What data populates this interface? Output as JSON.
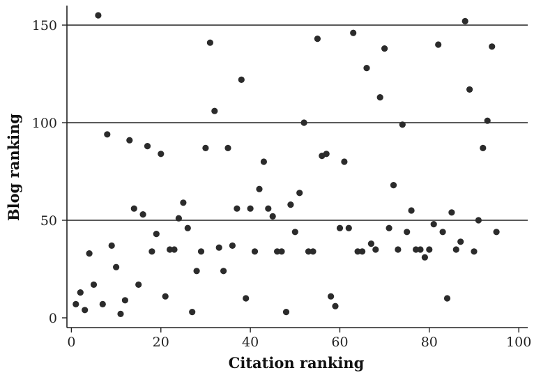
{
  "chart_data": {
    "type": "scatter",
    "title": "",
    "xlabel": "Citation ranking",
    "ylabel": "Blog ranking",
    "xlim": [
      -1,
      102
    ],
    "ylim": [
      -5,
      160
    ],
    "xticks": [
      0,
      20,
      40,
      60,
      80,
      100
    ],
    "yticks": [
      0,
      50,
      100,
      150
    ],
    "gridlines_y": [
      50,
      100,
      150
    ],
    "grid": "horizontal at 50, 100, 150",
    "legend": "none",
    "marker_color": "#2b2b2b",
    "points": [
      [
        1,
        7
      ],
      [
        2,
        13
      ],
      [
        3,
        4
      ],
      [
        4,
        33
      ],
      [
        5,
        17
      ],
      [
        6,
        155
      ],
      [
        7,
        7
      ],
      [
        8,
        94
      ],
      [
        9,
        37
      ],
      [
        10,
        26
      ],
      [
        11,
        2
      ],
      [
        12,
        9
      ],
      [
        13,
        91
      ],
      [
        14,
        56
      ],
      [
        15,
        17
      ],
      [
        16,
        53
      ],
      [
        17,
        88
      ],
      [
        18,
        34
      ],
      [
        19,
        43
      ],
      [
        20,
        84
      ],
      [
        21,
        11
      ],
      [
        22,
        35
      ],
      [
        23,
        35
      ],
      [
        24,
        51
      ],
      [
        25,
        59
      ],
      [
        26,
        46
      ],
      [
        27,
        3
      ],
      [
        28,
        24
      ],
      [
        29,
        34
      ],
      [
        30,
        87
      ],
      [
        31,
        141
      ],
      [
        32,
        106
      ],
      [
        33,
        36
      ],
      [
        34,
        24
      ],
      [
        35,
        87
      ],
      [
        36,
        37
      ],
      [
        37,
        56
      ],
      [
        38,
        122
      ],
      [
        39,
        10
      ],
      [
        40,
        56
      ],
      [
        41,
        34
      ],
      [
        42,
        66
      ],
      [
        43,
        80
      ],
      [
        44,
        56
      ],
      [
        45,
        52
      ],
      [
        46,
        34
      ],
      [
        47,
        34
      ],
      [
        48,
        3
      ],
      [
        49,
        58
      ],
      [
        50,
        44
      ],
      [
        51,
        64
      ],
      [
        52,
        100
      ],
      [
        53,
        34
      ],
      [
        54,
        34
      ],
      [
        55,
        143
      ],
      [
        56,
        83
      ],
      [
        57,
        84
      ],
      [
        58,
        11
      ],
      [
        59,
        6
      ],
      [
        60,
        46
      ],
      [
        61,
        80
      ],
      [
        62,
        46
      ],
      [
        63,
        146
      ],
      [
        64,
        34
      ],
      [
        65,
        34
      ],
      [
        66,
        128
      ],
      [
        67,
        38
      ],
      [
        68,
        35
      ],
      [
        69,
        113
      ],
      [
        70,
        138
      ],
      [
        71,
        46
      ],
      [
        72,
        68
      ],
      [
        73,
        35
      ],
      [
        74,
        99
      ],
      [
        75,
        44
      ],
      [
        76,
        55
      ],
      [
        77,
        35
      ],
      [
        78,
        35
      ],
      [
        79,
        31
      ],
      [
        80,
        35
      ],
      [
        81,
        48
      ],
      [
        82,
        140
      ],
      [
        83,
        44
      ],
      [
        84,
        10
      ],
      [
        85,
        54
      ],
      [
        86,
        35
      ],
      [
        87,
        39
      ],
      [
        88,
        152
      ],
      [
        89,
        117
      ],
      [
        90,
        34
      ],
      [
        91,
        50
      ],
      [
        92,
        87
      ],
      [
        93,
        101
      ],
      [
        94,
        139
      ],
      [
        95,
        44
      ]
    ]
  }
}
